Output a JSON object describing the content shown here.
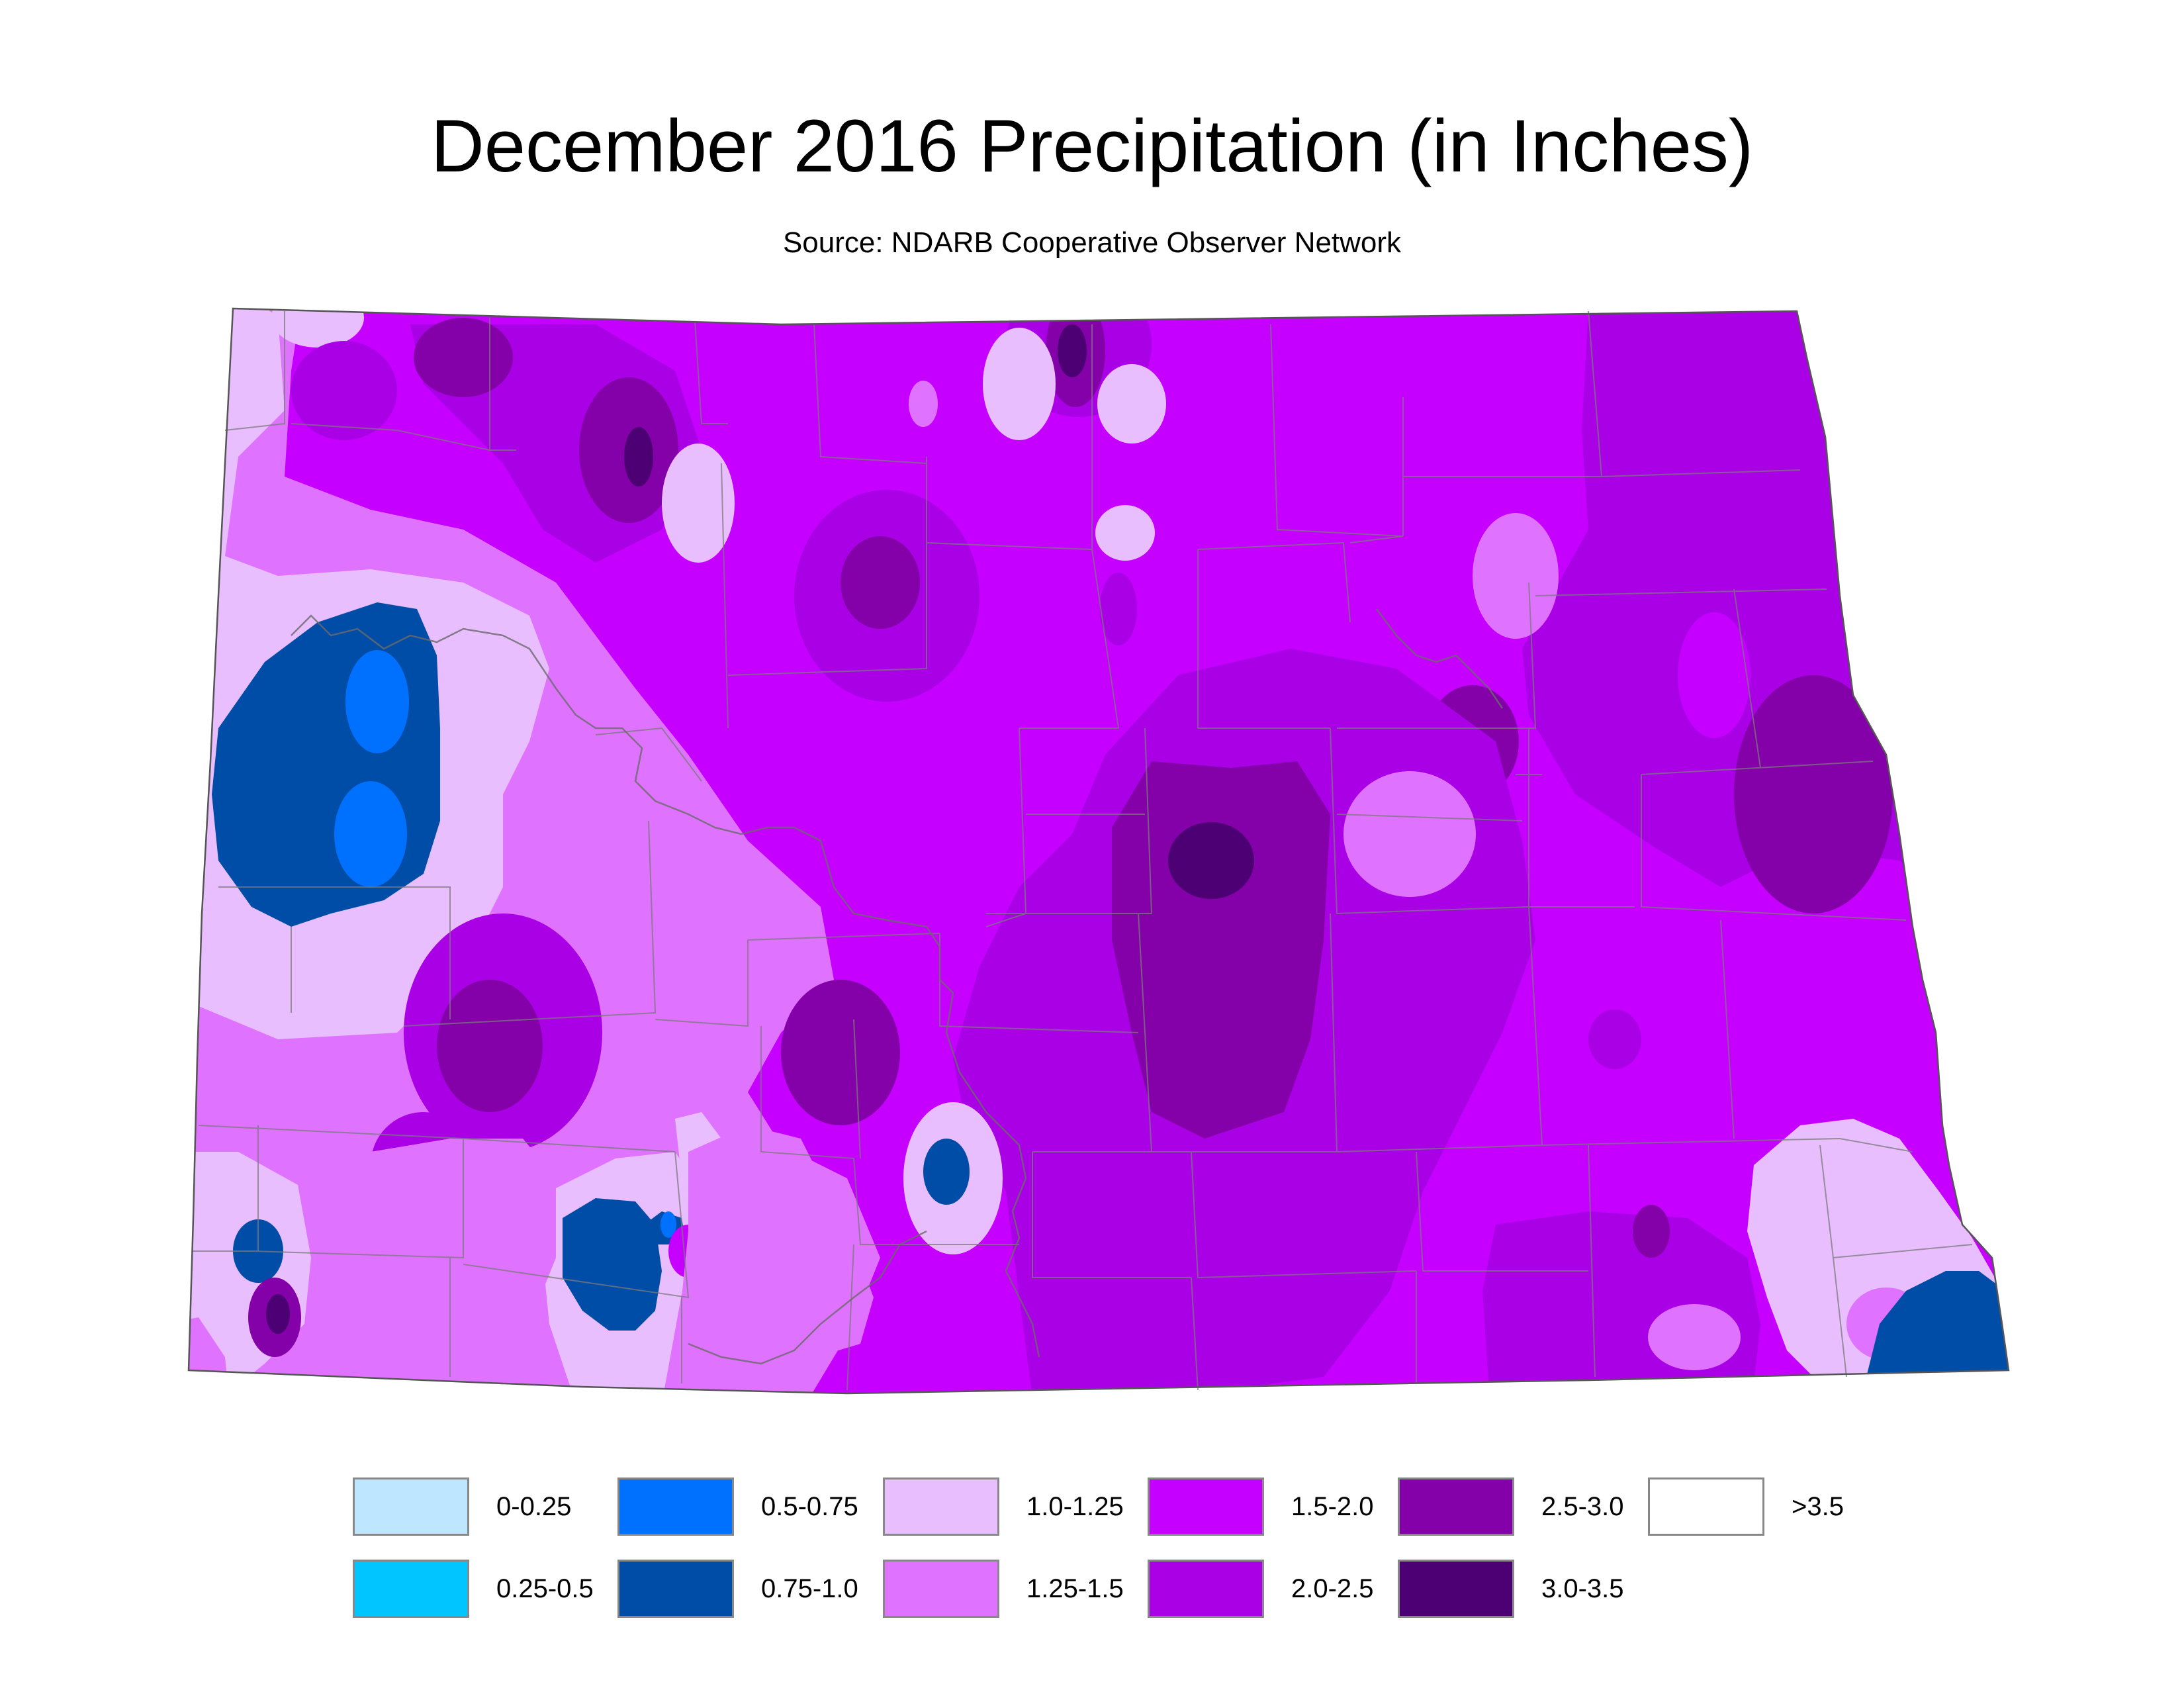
{
  "title": "December 2016 Precipitation (in Inches)",
  "subtitle": "Source: NDARB Cooperative Observer Network",
  "legend": [
    {
      "label": "0-0.25",
      "color": "#bfe6ff"
    },
    {
      "label": "0.25-0.5",
      "color": "#00c5ff"
    },
    {
      "label": "0.5-0.75",
      "color": "#0070ff"
    },
    {
      "label": "0.75-1.0",
      "color": "#004da8"
    },
    {
      "label": "1.0-1.25",
      "color": "#e8beff"
    },
    {
      "label": "1.25-1.5",
      "color": "#df73ff"
    },
    {
      "label": "1.5-2.0",
      "color": "#c500ff"
    },
    {
      "label": "2.0-2.5",
      "color": "#a900e6"
    },
    {
      "label": "2.5-3.0",
      "color": "#8400a8"
    },
    {
      "label": "3.0-3.5",
      "color": "#4c0073"
    },
    {
      "label": ">3.5",
      "color": "#ffffff"
    }
  ]
}
